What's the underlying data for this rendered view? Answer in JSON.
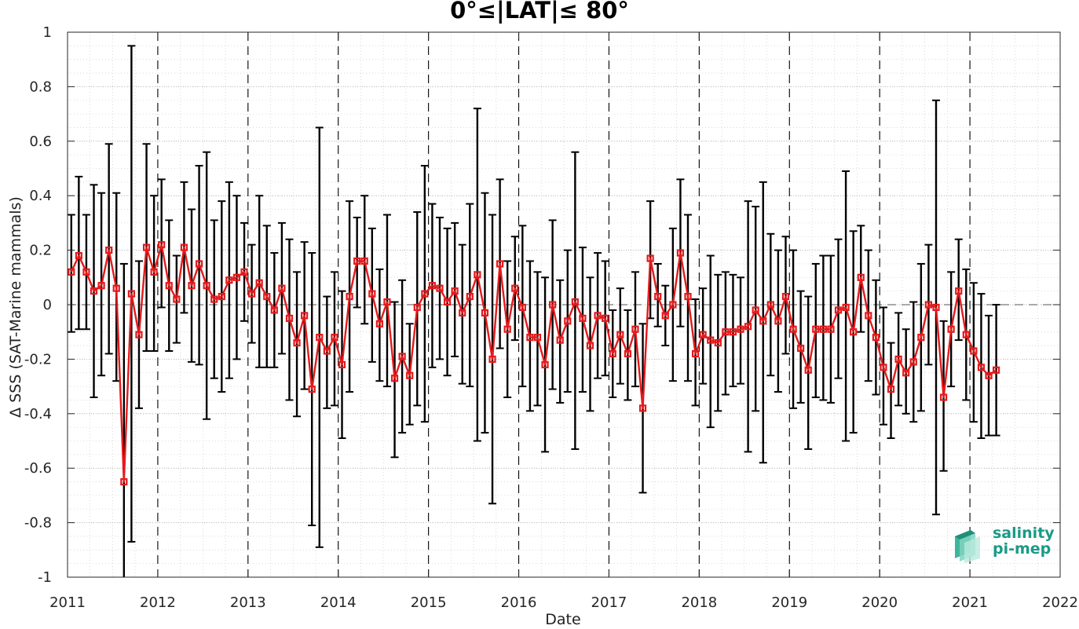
{
  "chart_data": {
    "type": "line",
    "title": "0°≤|LAT|≤ 80°",
    "xlabel": "Date",
    "ylabel": "Δ SSS (SAT-Marine mammals)",
    "xlim": [
      2011,
      2022
    ],
    "ylim": [
      -1,
      1
    ],
    "xticks": [
      "2011",
      "2012",
      "2013",
      "2014",
      "2015",
      "2016",
      "2017",
      "2018",
      "2019",
      "2020",
      "2021",
      "2022"
    ],
    "yticks": [
      "1",
      "0.8",
      "0.6",
      "0.4",
      "0.2",
      "0",
      "-0.2",
      "-0.4",
      "-0.6",
      "-0.8",
      "-1"
    ],
    "grid": true,
    "series": [
      {
        "color": "#e41a1c",
        "errorbar_color": "#000000",
        "marker": "square",
        "points": [
          {
            "x": "2011-01",
            "y": 0.12,
            "lo": -0.1,
            "hi": 0.33
          },
          {
            "x": "2011-02",
            "y": 0.18,
            "lo": -0.09,
            "hi": 0.47
          },
          {
            "x": "2011-03",
            "y": 0.12,
            "lo": -0.09,
            "hi": 0.33
          },
          {
            "x": "2011-04",
            "y": 0.05,
            "lo": -0.34,
            "hi": 0.44
          },
          {
            "x": "2011-05",
            "y": 0.07,
            "lo": -0.26,
            "hi": 0.41
          },
          {
            "x": "2011-06",
            "y": 0.2,
            "lo": -0.18,
            "hi": 0.59
          },
          {
            "x": "2011-07",
            "y": 0.06,
            "lo": -0.28,
            "hi": 0.41
          },
          {
            "x": "2011-08",
            "y": -0.65,
            "lo": -1.0,
            "hi": 0.15
          },
          {
            "x": "2011-09",
            "y": 0.04,
            "lo": -0.87,
            "hi": 0.95
          },
          {
            "x": "2011-10",
            "y": -0.11,
            "lo": -0.38,
            "hi": 0.16
          },
          {
            "x": "2011-11",
            "y": 0.21,
            "lo": -0.17,
            "hi": 0.59
          },
          {
            "x": "2011-12",
            "y": 0.12,
            "lo": -0.17,
            "hi": 0.4
          },
          {
            "x": "2012-01",
            "y": 0.22,
            "lo": -0.01,
            "hi": 0.46
          },
          {
            "x": "2012-02",
            "y": 0.07,
            "lo": -0.17,
            "hi": 0.31
          },
          {
            "x": "2012-03",
            "y": 0.02,
            "lo": -0.14,
            "hi": 0.18
          },
          {
            "x": "2012-04",
            "y": 0.21,
            "lo": -0.03,
            "hi": 0.45
          },
          {
            "x": "2012-05",
            "y": 0.07,
            "lo": -0.21,
            "hi": 0.35
          },
          {
            "x": "2012-06",
            "y": 0.15,
            "lo": -0.22,
            "hi": 0.51
          },
          {
            "x": "2012-07",
            "y": 0.07,
            "lo": -0.42,
            "hi": 0.56
          },
          {
            "x": "2012-08",
            "y": 0.02,
            "lo": -0.27,
            "hi": 0.31
          },
          {
            "x": "2012-09",
            "y": 0.03,
            "lo": -0.32,
            "hi": 0.38
          },
          {
            "x": "2012-10",
            "y": 0.09,
            "lo": -0.27,
            "hi": 0.45
          },
          {
            "x": "2012-11",
            "y": 0.1,
            "lo": -0.2,
            "hi": 0.4
          },
          {
            "x": "2012-12",
            "y": 0.12,
            "lo": -0.06,
            "hi": 0.3
          },
          {
            "x": "2013-01",
            "y": 0.04,
            "lo": -0.14,
            "hi": 0.22
          },
          {
            "x": "2013-02",
            "y": 0.08,
            "lo": -0.23,
            "hi": 0.4
          },
          {
            "x": "2013-03",
            "y": 0.03,
            "lo": -0.23,
            "hi": 0.29
          },
          {
            "x": "2013-04",
            "y": -0.02,
            "lo": -0.23,
            "hi": 0.19
          },
          {
            "x": "2013-05",
            "y": 0.06,
            "lo": -0.18,
            "hi": 0.3
          },
          {
            "x": "2013-06",
            "y": -0.05,
            "lo": -0.35,
            "hi": 0.24
          },
          {
            "x": "2013-07",
            "y": -0.14,
            "lo": -0.41,
            "hi": 0.12
          },
          {
            "x": "2013-08",
            "y": -0.04,
            "lo": -0.31,
            "hi": 0.23
          },
          {
            "x": "2013-09",
            "y": -0.31,
            "lo": -0.81,
            "hi": 0.19
          },
          {
            "x": "2013-10",
            "y": -0.12,
            "lo": -0.89,
            "hi": 0.65
          },
          {
            "x": "2013-11",
            "y": -0.17,
            "lo": -0.38,
            "hi": 0.03
          },
          {
            "x": "2013-12",
            "y": -0.12,
            "lo": -0.37,
            "hi": 0.12
          },
          {
            "x": "2014-01",
            "y": -0.22,
            "lo": -0.49,
            "hi": 0.05
          },
          {
            "x": "2014-02",
            "y": 0.03,
            "lo": -0.32,
            "hi": 0.38
          },
          {
            "x": "2014-03",
            "y": 0.16,
            "lo": -0.01,
            "hi": 0.32
          },
          {
            "x": "2014-04",
            "y": 0.16,
            "lo": -0.07,
            "hi": 0.4
          },
          {
            "x": "2014-05",
            "y": 0.04,
            "lo": -0.21,
            "hi": 0.28
          },
          {
            "x": "2014-06",
            "y": -0.07,
            "lo": -0.28,
            "hi": 0.13
          },
          {
            "x": "2014-07",
            "y": 0.01,
            "lo": -0.3,
            "hi": 0.33
          },
          {
            "x": "2014-08",
            "y": -0.27,
            "lo": -0.56,
            "hi": 0.01
          },
          {
            "x": "2014-09",
            "y": -0.19,
            "lo": -0.47,
            "hi": 0.09
          },
          {
            "x": "2014-10",
            "y": -0.26,
            "lo": -0.44,
            "hi": -0.07
          },
          {
            "x": "2014-11",
            "y": -0.01,
            "lo": -0.37,
            "hi": 0.34
          },
          {
            "x": "2014-12",
            "y": 0.04,
            "lo": -0.43,
            "hi": 0.51
          },
          {
            "x": "2015-01",
            "y": 0.07,
            "lo": -0.23,
            "hi": 0.37
          },
          {
            "x": "2015-02",
            "y": 0.06,
            "lo": -0.2,
            "hi": 0.32
          },
          {
            "x": "2015-03",
            "y": 0.01,
            "lo": -0.26,
            "hi": 0.28
          },
          {
            "x": "2015-04",
            "y": 0.05,
            "lo": -0.19,
            "hi": 0.3
          },
          {
            "x": "2015-05",
            "y": -0.03,
            "lo": -0.29,
            "hi": 0.22
          },
          {
            "x": "2015-06",
            "y": 0.03,
            "lo": -0.3,
            "hi": 0.37
          },
          {
            "x": "2015-07",
            "y": 0.11,
            "lo": -0.5,
            "hi": 0.72
          },
          {
            "x": "2015-08",
            "y": -0.03,
            "lo": -0.47,
            "hi": 0.41
          },
          {
            "x": "2015-09",
            "y": -0.2,
            "lo": -0.73,
            "hi": 0.33
          },
          {
            "x": "2015-10",
            "y": 0.15,
            "lo": -0.16,
            "hi": 0.46
          },
          {
            "x": "2015-11",
            "y": -0.09,
            "lo": -0.34,
            "hi": 0.16
          },
          {
            "x": "2015-12",
            "y": 0.06,
            "lo": -0.13,
            "hi": 0.25
          },
          {
            "x": "2016-01",
            "y": -0.01,
            "lo": -0.3,
            "hi": 0.29
          },
          {
            "x": "2016-02",
            "y": -0.12,
            "lo": -0.39,
            "hi": 0.16
          },
          {
            "x": "2016-03",
            "y": -0.12,
            "lo": -0.37,
            "hi": 0.12
          },
          {
            "x": "2016-04",
            "y": -0.22,
            "lo": -0.54,
            "hi": 0.1
          },
          {
            "x": "2016-05",
            "y": 0.0,
            "lo": -0.31,
            "hi": 0.31
          },
          {
            "x": "2016-06",
            "y": -0.13,
            "lo": -0.36,
            "hi": 0.09
          },
          {
            "x": "2016-07",
            "y": -0.06,
            "lo": -0.32,
            "hi": 0.2
          },
          {
            "x": "2016-08",
            "y": 0.01,
            "lo": -0.53,
            "hi": 0.56
          },
          {
            "x": "2016-09",
            "y": -0.05,
            "lo": -0.32,
            "hi": 0.21
          },
          {
            "x": "2016-10",
            "y": -0.15,
            "lo": -0.39,
            "hi": 0.1
          },
          {
            "x": "2016-11",
            "y": -0.04,
            "lo": -0.27,
            "hi": 0.19
          },
          {
            "x": "2016-12",
            "y": -0.05,
            "lo": -0.26,
            "hi": 0.16
          },
          {
            "x": "2017-01",
            "y": -0.18,
            "lo": -0.34,
            "hi": -0.02
          },
          {
            "x": "2017-02",
            "y": -0.11,
            "lo": -0.29,
            "hi": 0.06
          },
          {
            "x": "2017-03",
            "y": -0.18,
            "lo": -0.35,
            "hi": -0.02
          },
          {
            "x": "2017-04",
            "y": -0.09,
            "lo": -0.3,
            "hi": 0.12
          },
          {
            "x": "2017-05",
            "y": -0.38,
            "lo": -0.69,
            "hi": -0.07
          },
          {
            "x": "2017-06",
            "y": 0.17,
            "lo": -0.05,
            "hi": 0.38
          },
          {
            "x": "2017-07",
            "y": 0.03,
            "lo": -0.08,
            "hi": 0.15
          },
          {
            "x": "2017-08",
            "y": -0.04,
            "lo": -0.15,
            "hi": 0.07
          },
          {
            "x": "2017-09",
            "y": 0.0,
            "lo": -0.28,
            "hi": 0.28
          },
          {
            "x": "2017-10",
            "y": 0.19,
            "lo": -0.08,
            "hi": 0.46
          },
          {
            "x": "2017-11",
            "y": 0.03,
            "lo": -0.28,
            "hi": 0.33
          },
          {
            "x": "2017-12",
            "y": -0.18,
            "lo": -0.37,
            "hi": 0.02
          },
          {
            "x": "2018-01",
            "y": -0.11,
            "lo": -0.29,
            "hi": 0.06
          },
          {
            "x": "2018-02",
            "y": -0.13,
            "lo": -0.45,
            "hi": 0.18
          },
          {
            "x": "2018-03",
            "y": -0.14,
            "lo": -0.39,
            "hi": 0.11
          },
          {
            "x": "2018-04",
            "y": -0.1,
            "lo": -0.33,
            "hi": 0.12
          },
          {
            "x": "2018-05",
            "y": -0.1,
            "lo": -0.3,
            "hi": 0.11
          },
          {
            "x": "2018-06",
            "y": -0.09,
            "lo": -0.29,
            "hi": 0.1
          },
          {
            "x": "2018-07",
            "y": -0.08,
            "lo": -0.54,
            "hi": 0.38
          },
          {
            "x": "2018-08",
            "y": -0.02,
            "lo": -0.39,
            "hi": 0.36
          },
          {
            "x": "2018-09",
            "y": -0.06,
            "lo": -0.58,
            "hi": 0.45
          },
          {
            "x": "2018-10",
            "y": 0.0,
            "lo": -0.26,
            "hi": 0.26
          },
          {
            "x": "2018-11",
            "y": -0.06,
            "lo": -0.32,
            "hi": 0.2
          },
          {
            "x": "2018-12",
            "y": 0.03,
            "lo": -0.18,
            "hi": 0.25
          },
          {
            "x": "2019-01",
            "y": -0.09,
            "lo": -0.38,
            "hi": 0.2
          },
          {
            "x": "2019-02",
            "y": -0.16,
            "lo": -0.36,
            "hi": 0.05
          },
          {
            "x": "2019-03",
            "y": -0.24,
            "lo": -0.53,
            "hi": 0.03
          },
          {
            "x": "2019-04",
            "y": -0.09,
            "lo": -0.34,
            "hi": 0.15
          },
          {
            "x": "2019-05",
            "y": -0.09,
            "lo": -0.35,
            "hi": 0.18
          },
          {
            "x": "2019-06",
            "y": -0.09,
            "lo": -0.36,
            "hi": 0.18
          },
          {
            "x": "2019-07",
            "y": -0.02,
            "lo": -0.27,
            "hi": 0.24
          },
          {
            "x": "2019-08",
            "y": -0.01,
            "lo": -0.5,
            "hi": 0.49
          },
          {
            "x": "2019-09",
            "y": -0.1,
            "lo": -0.47,
            "hi": 0.27
          },
          {
            "x": "2019-10",
            "y": 0.1,
            "lo": -0.1,
            "hi": 0.29
          },
          {
            "x": "2019-11",
            "y": -0.04,
            "lo": -0.28,
            "hi": 0.2
          },
          {
            "x": "2019-12",
            "y": -0.12,
            "lo": -0.33,
            "hi": 0.09
          },
          {
            "x": "2020-01",
            "y": -0.23,
            "lo": -0.44,
            "hi": -0.01
          },
          {
            "x": "2020-02",
            "y": -0.31,
            "lo": -0.49,
            "hi": -0.14
          },
          {
            "x": "2020-03",
            "y": -0.2,
            "lo": -0.37,
            "hi": -0.03
          },
          {
            "x": "2020-04",
            "y": -0.25,
            "lo": -0.4,
            "hi": -0.09
          },
          {
            "x": "2020-05",
            "y": -0.21,
            "lo": -0.43,
            "hi": 0.01
          },
          {
            "x": "2020-06",
            "y": -0.12,
            "lo": -0.39,
            "hi": 0.15
          },
          {
            "x": "2020-07",
            "y": 0.0,
            "lo": -0.22,
            "hi": 0.22
          },
          {
            "x": "2020-08",
            "y": -0.01,
            "lo": -0.77,
            "hi": 0.75
          },
          {
            "x": "2020-09",
            "y": -0.34,
            "lo": -0.61,
            "hi": -0.06
          },
          {
            "x": "2020-10",
            "y": -0.09,
            "lo": -0.3,
            "hi": 0.12
          },
          {
            "x": "2020-11",
            "y": 0.05,
            "lo": -0.13,
            "hi": 0.24
          },
          {
            "x": "2020-12",
            "y": -0.11,
            "lo": -0.35,
            "hi": 0.13
          },
          {
            "x": "2021-01",
            "y": -0.17,
            "lo": -0.43,
            "hi": 0.08
          },
          {
            "x": "2021-02",
            "y": -0.23,
            "lo": -0.49,
            "hi": 0.04
          },
          {
            "x": "2021-03",
            "y": -0.26,
            "lo": -0.48,
            "hi": -0.04
          },
          {
            "x": "2021-04",
            "y": -0.24,
            "lo": -0.48,
            "hi": 0.0
          }
        ]
      }
    ],
    "reference_line": {
      "y": 0,
      "style": "dashed"
    },
    "year_separators": "dashed vertical lines at each year"
  },
  "logo": {
    "line1": "salinity",
    "line2": "pi-mep",
    "color": "#1a9a86"
  }
}
